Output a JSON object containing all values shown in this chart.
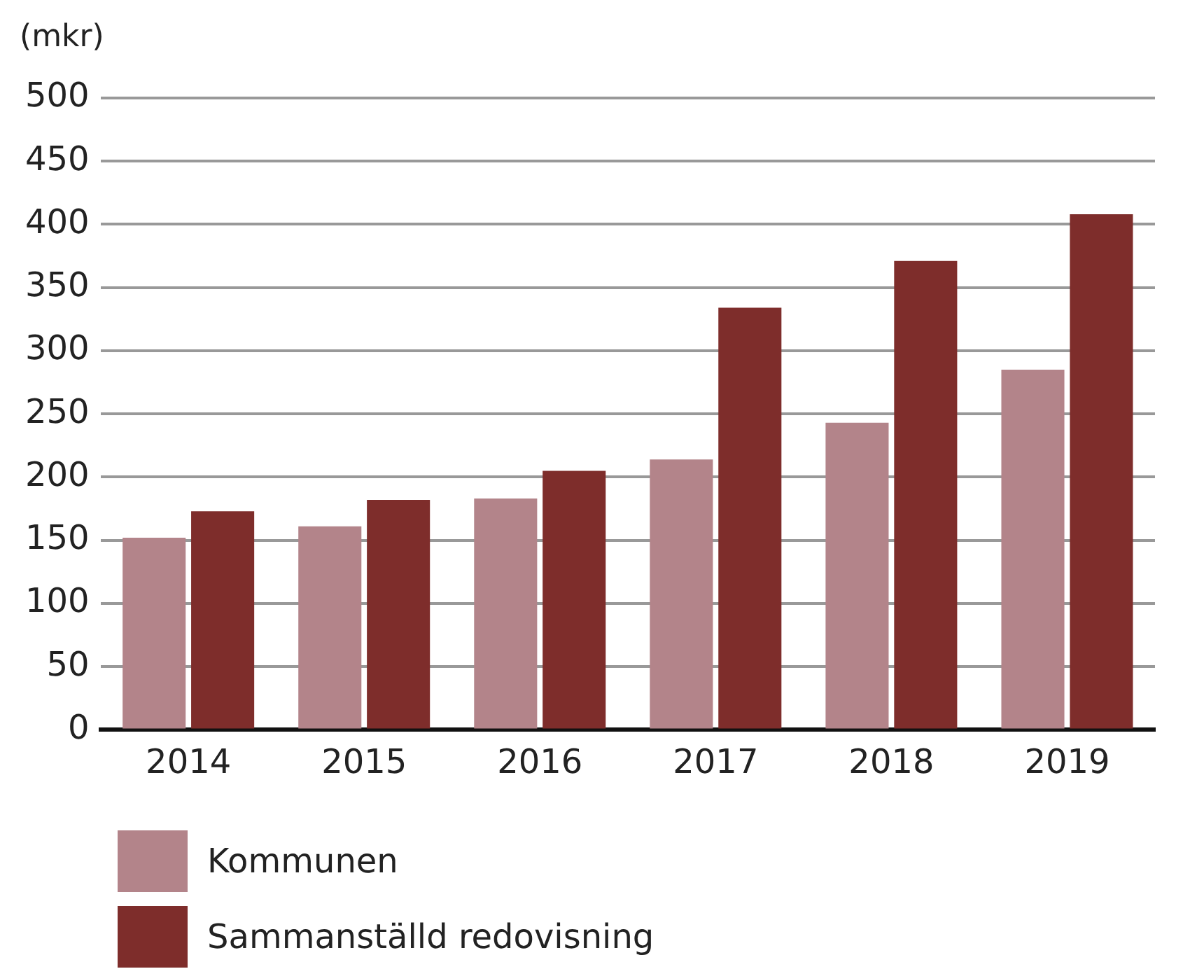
{
  "chart_data": {
    "type": "bar",
    "ylabel": "(mkr)",
    "categories": [
      "2014",
      "2015",
      "2016",
      "2017",
      "2018",
      "2019"
    ],
    "series": [
      {
        "name": "Kommunen",
        "color": "#b3848a",
        "values": [
          152,
          161,
          183,
          214,
          243,
          285
        ]
      },
      {
        "name": "Sammanställd redovisning",
        "color": "#7e2d2b",
        "values": [
          173,
          182,
          205,
          334,
          371,
          408
        ]
      }
    ],
    "ylim": [
      0,
      500
    ],
    "yticks": [
      0,
      50,
      100,
      150,
      200,
      250,
      300,
      350,
      400,
      450,
      500
    ],
    "grid": "y",
    "legend": "bottom"
  }
}
